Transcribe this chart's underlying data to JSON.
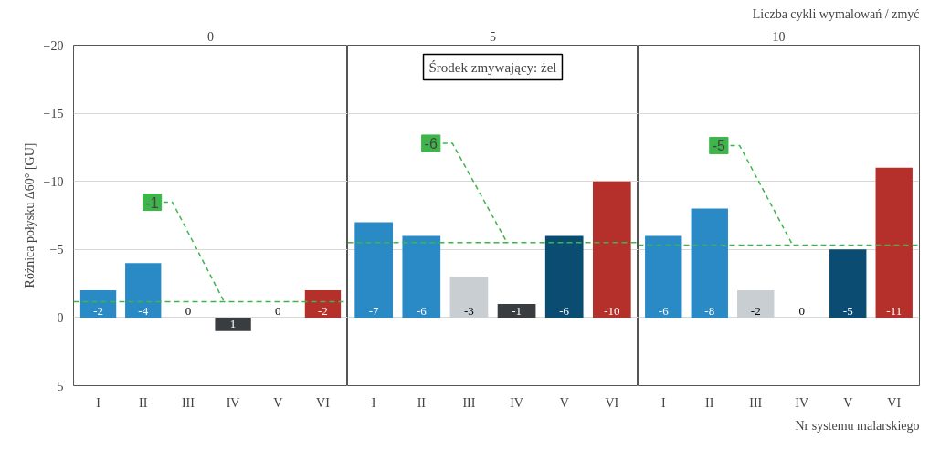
{
  "chart_data": [
    {
      "type": "bar",
      "title": "0",
      "ylabel": "Różnica połysku Δ60° [GU]",
      "categories": [
        "I",
        "II",
        "III",
        "IV",
        "V",
        "VI"
      ],
      "values": [
        -2,
        -4,
        0,
        1,
        0,
        -2
      ],
      "colors": [
        "#2a8ac6",
        "#2a8ac6",
        "#c9ced2",
        "#3a3d40",
        "#0b4d72",
        "#b5302b"
      ],
      "data_labels": true,
      "ylim": [
        5,
        -20
      ],
      "yticks": [
        -20,
        -15,
        -10,
        -5,
        0,
        5
      ],
      "grid": "y",
      "ref_lines": [
        {
          "axis": "y",
          "value": -1.17,
          "label": "-1",
          "color": "#3db54a",
          "line_style": "dashed"
        }
      ]
    },
    {
      "type": "bar",
      "title": "5",
      "categories": [
        "I",
        "II",
        "III",
        "IV",
        "V",
        "VI"
      ],
      "values": [
        -7,
        -6,
        -3,
        -1,
        -6,
        -10
      ],
      "colors": [
        "#2a8ac6",
        "#2a8ac6",
        "#c9ced2",
        "#3a3d40",
        "#0b4d72",
        "#b5302b"
      ],
      "data_labels": true,
      "ylim": [
        5,
        -20
      ],
      "yticks": [
        -20,
        -15,
        -10,
        -5,
        0,
        5
      ],
      "grid": "y",
      "tick_labels": "x",
      "ref_lines": [
        {
          "axis": "y",
          "value": -5.5,
          "label": "-6",
          "color": "#3db54a",
          "line_style": "dashed"
        }
      ],
      "annotations": [
        "Środek zmywający: żel"
      ]
    },
    {
      "type": "bar",
      "title": "10",
      "xlabel": "Nr systemu malarskiego",
      "categories": [
        "I",
        "II",
        "III",
        "IV",
        "V",
        "VI"
      ],
      "values": [
        -6,
        -8,
        -2,
        0,
        -5,
        -11
      ],
      "colors": [
        "#2a8ac6",
        "#2a8ac6",
        "#c9ced2",
        "#3a3d40",
        "#0b4d72",
        "#b5302b"
      ],
      "data_labels": true,
      "ylim": [
        5,
        -20
      ],
      "yticks": [
        -20,
        -15,
        -10,
        -5,
        0,
        5
      ],
      "grid": "y",
      "tick_labels": "x",
      "ref_lines": [
        {
          "axis": "y",
          "value": -5.33,
          "label": "-5",
          "color": "#3db54a",
          "line_style": "dashed"
        }
      ],
      "annotations": [
        "Liczba cykli wymalowań / zmyć"
      ]
    }
  ]
}
